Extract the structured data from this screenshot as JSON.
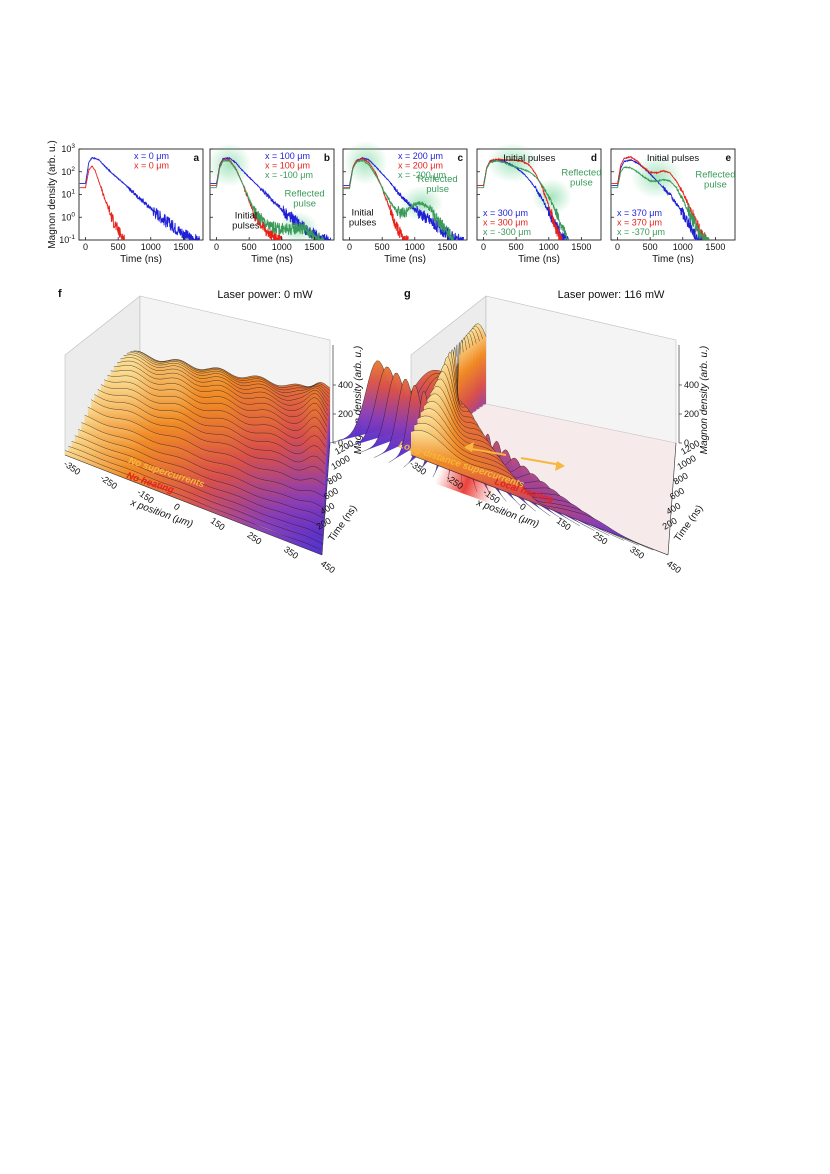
{
  "chart_data": [
    {
      "type": "line",
      "panel": "a",
      "ylabel": "Magnon density (arb. u.)",
      "xlabel": "Time (ns)",
      "yscale": "log",
      "ylim_exp": [
        -1,
        3
      ],
      "yticks": [
        "10^-1",
        "10^0",
        "10^1",
        "10^2",
        "10^3"
      ],
      "xlim": [
        -100,
        1800
      ],
      "xticks": [
        "0",
        "500",
        "1000",
        "1500"
      ],
      "series": [
        {
          "name": "x = 0 μm",
          "color": "#1f1fd6",
          "x": [
            0,
            50,
            100,
            200,
            300,
            400,
            600,
            800,
            1000,
            1200,
            1400,
            1600,
            1750
          ],
          "y": [
            30,
            260,
            420,
            340,
            170,
            90,
            28,
            8,
            2.5,
            0.8,
            0.3,
            0.12,
            0.08
          ]
        },
        {
          "name": "x = 0 μm",
          "color": "#e8201a",
          "x": [
            0,
            50,
            100,
            150,
            200,
            300,
            400,
            500,
            600
          ],
          "y": [
            20,
            120,
            180,
            110,
            40,
            6,
            1,
            0.25,
            0.1
          ]
        }
      ],
      "annotations": []
    },
    {
      "type": "line",
      "panel": "b",
      "xlabel": "Time (ns)",
      "yscale": "log",
      "xticks": [
        "0",
        "500",
        "1000",
        "1500"
      ],
      "series": [
        {
          "name": "x =  100 μm",
          "color": "#1f1fd6",
          "x": [
            0,
            50,
            100,
            200,
            300,
            400,
            600,
            800,
            1000,
            1200,
            1400,
            1600,
            1750
          ],
          "y": [
            30,
            200,
            380,
            400,
            240,
            110,
            30,
            8,
            2.2,
            0.7,
            0.25,
            0.12,
            0.08
          ]
        },
        {
          "name": "x =  100 μm",
          "color": "#e8201a",
          "x": [
            0,
            50,
            100,
            200,
            300,
            400,
            500,
            600,
            800,
            1000
          ],
          "y": [
            25,
            180,
            340,
            330,
            130,
            30,
            5,
            1,
            0.2,
            0.08
          ]
        },
        {
          "name": "x = -100 μm",
          "color": "#3a9a5a",
          "x": [
            0,
            50,
            100,
            200,
            300,
            400,
            500,
            600,
            800,
            1000,
            1150,
            1250,
            1350,
            1500,
            1650
          ],
          "y": [
            20,
            150,
            300,
            300,
            120,
            30,
            6,
            1.5,
            0.4,
            0.3,
            0.3,
            0.35,
            0.3,
            0.15,
            0.08
          ]
        }
      ],
      "annotations": [
        "Initial pulses",
        "Reflected pulse"
      ]
    },
    {
      "type": "line",
      "panel": "c",
      "xlabel": "Time (ns)",
      "yscale": "log",
      "xticks": [
        "0",
        "500",
        "1000",
        "1500"
      ],
      "series": [
        {
          "name": "x =  200 μm",
          "color": "#1f1fd6",
          "x": [
            0,
            50,
            100,
            200,
            300,
            400,
            600,
            800,
            1000,
            1200,
            1400,
            1600,
            1750
          ],
          "y": [
            25,
            150,
            300,
            400,
            330,
            170,
            40,
            8,
            2.2,
            0.8,
            0.3,
            0.12,
            0.08
          ]
        },
        {
          "name": "x =  200 μm",
          "color": "#e8201a",
          "x": [
            0,
            50,
            100,
            200,
            300,
            400,
            500,
            600,
            700,
            800,
            900
          ],
          "y": [
            20,
            150,
            300,
            380,
            250,
            90,
            20,
            3,
            0.5,
            0.15,
            0.08
          ]
        },
        {
          "name": "x = -200 μm",
          "color": "#3a9a5a",
          "x": [
            0,
            50,
            100,
            200,
            300,
            400,
            500,
            600,
            700,
            800,
            900,
            1000,
            1100,
            1200,
            1400,
            1600
          ],
          "y": [
            18,
            130,
            260,
            320,
            200,
            70,
            20,
            6,
            2.2,
            1.4,
            2.2,
            3.8,
            4.2,
            2.6,
            0.5,
            0.1
          ]
        }
      ],
      "annotations": [
        "Initial pulses",
        "Reflected pulse"
      ]
    },
    {
      "type": "line",
      "panel": "d",
      "xlabel": "Time (ns)",
      "yscale": "log",
      "xticks": [
        "0",
        "500",
        "1000",
        "1500"
      ],
      "series": [
        {
          "name": "x =  300 μm",
          "color": "#1f1fd6",
          "x": [
            0,
            50,
            100,
            200,
            300,
            400,
            500,
            600,
            700,
            800,
            900,
            1000,
            1100,
            1200,
            1300
          ],
          "y": [
            25,
            150,
            280,
            350,
            300,
            220,
            150,
            90,
            45,
            18,
            6,
            1.8,
            0.5,
            0.15,
            0.08
          ]
        },
        {
          "name": "x =  300 μm",
          "color": "#e8201a",
          "x": [
            0,
            50,
            100,
            200,
            300,
            400,
            500,
            600,
            700,
            800,
            900,
            1000,
            1100,
            1200
          ],
          "y": [
            25,
            160,
            300,
            360,
            330,
            330,
            320,
            280,
            200,
            80,
            20,
            3,
            0.4,
            0.08
          ]
        },
        {
          "name": "x = -300 μm",
          "color": "#3a9a5a",
          "x": [
            0,
            50,
            100,
            200,
            300,
            400,
            500,
            600,
            700,
            800,
            900,
            1000,
            1100,
            1200,
            1300
          ],
          "y": [
            20,
            140,
            260,
            300,
            260,
            200,
            160,
            130,
            100,
            60,
            25,
            8,
            2,
            0.4,
            0.08
          ]
        }
      ],
      "annotations": [
        "Initial pulses",
        "Reflected pulse"
      ]
    },
    {
      "type": "line",
      "panel": "e",
      "xlabel": "Time (ns)",
      "yscale": "log",
      "xticks": [
        "0",
        "500",
        "1000",
        "1500"
      ],
      "series": [
        {
          "name": "x =  370 μm",
          "color": "#1f1fd6",
          "x": [
            0,
            50,
            100,
            200,
            300,
            400,
            500,
            600,
            700,
            800,
            900,
            1000,
            1100,
            1200,
            1300
          ],
          "y": [
            25,
            150,
            280,
            330,
            250,
            150,
            80,
            40,
            20,
            10,
            4,
            1.5,
            0.5,
            0.15,
            0.08
          ]
        },
        {
          "name": "x =  370 μm",
          "color": "#e8201a",
          "x": [
            0,
            50,
            100,
            200,
            300,
            400,
            500,
            600,
            700,
            800,
            900,
            1000,
            1100,
            1200,
            1300,
            1400
          ],
          "y": [
            30,
            200,
            380,
            450,
            300,
            150,
            95,
            90,
            110,
            90,
            40,
            12,
            3,
            0.6,
            0.15,
            0.08
          ]
        },
        {
          "name": "x = -370 μm",
          "color": "#3a9a5a",
          "x": [
            0,
            50,
            100,
            200,
            300,
            400,
            500,
            600,
            700,
            800,
            900,
            1000,
            1100,
            1200,
            1300,
            1400
          ],
          "y": [
            20,
            100,
            160,
            150,
            100,
            60,
            40,
            38,
            45,
            40,
            20,
            6,
            1.5,
            0.4,
            0.12,
            0.08
          ]
        }
      ],
      "annotations": [
        "Initial pulses",
        "Reflected pulse"
      ]
    },
    {
      "type": "area",
      "panel": "f",
      "title": "Laser power: 0 mW",
      "xlabel": "x position (μm)",
      "ylabel": "Time (ns)",
      "zlabel": "Magnon density (arb. u.)",
      "xticks": [
        "-350",
        "-250",
        "-150",
        "0",
        "150",
        "250",
        "350",
        "450"
      ],
      "yticks": [
        "0",
        "200",
        "400",
        "600",
        "800",
        "1000",
        "1200"
      ],
      "zticks": [
        "0",
        "200",
        "400"
      ],
      "annotations": [
        "No supercurrents",
        "No heating"
      ]
    },
    {
      "type": "area",
      "panel": "g",
      "title": "Laser power: 116 mW",
      "xlabel": "x position (μm)",
      "ylabel": "Time (ns)",
      "zlabel": "Magnon density (arb. u.)",
      "xticks": [
        "-350",
        "-250",
        "-150",
        "0",
        "150",
        "250",
        "350",
        "450"
      ],
      "yticks": [
        "0",
        "200",
        "400",
        "600",
        "800",
        "1000",
        "1200"
      ],
      "zticks": [
        "0",
        "200",
        "400"
      ],
      "annotations": [
        "Long-distance supercurrents",
        "Local heating"
      ]
    }
  ]
}
